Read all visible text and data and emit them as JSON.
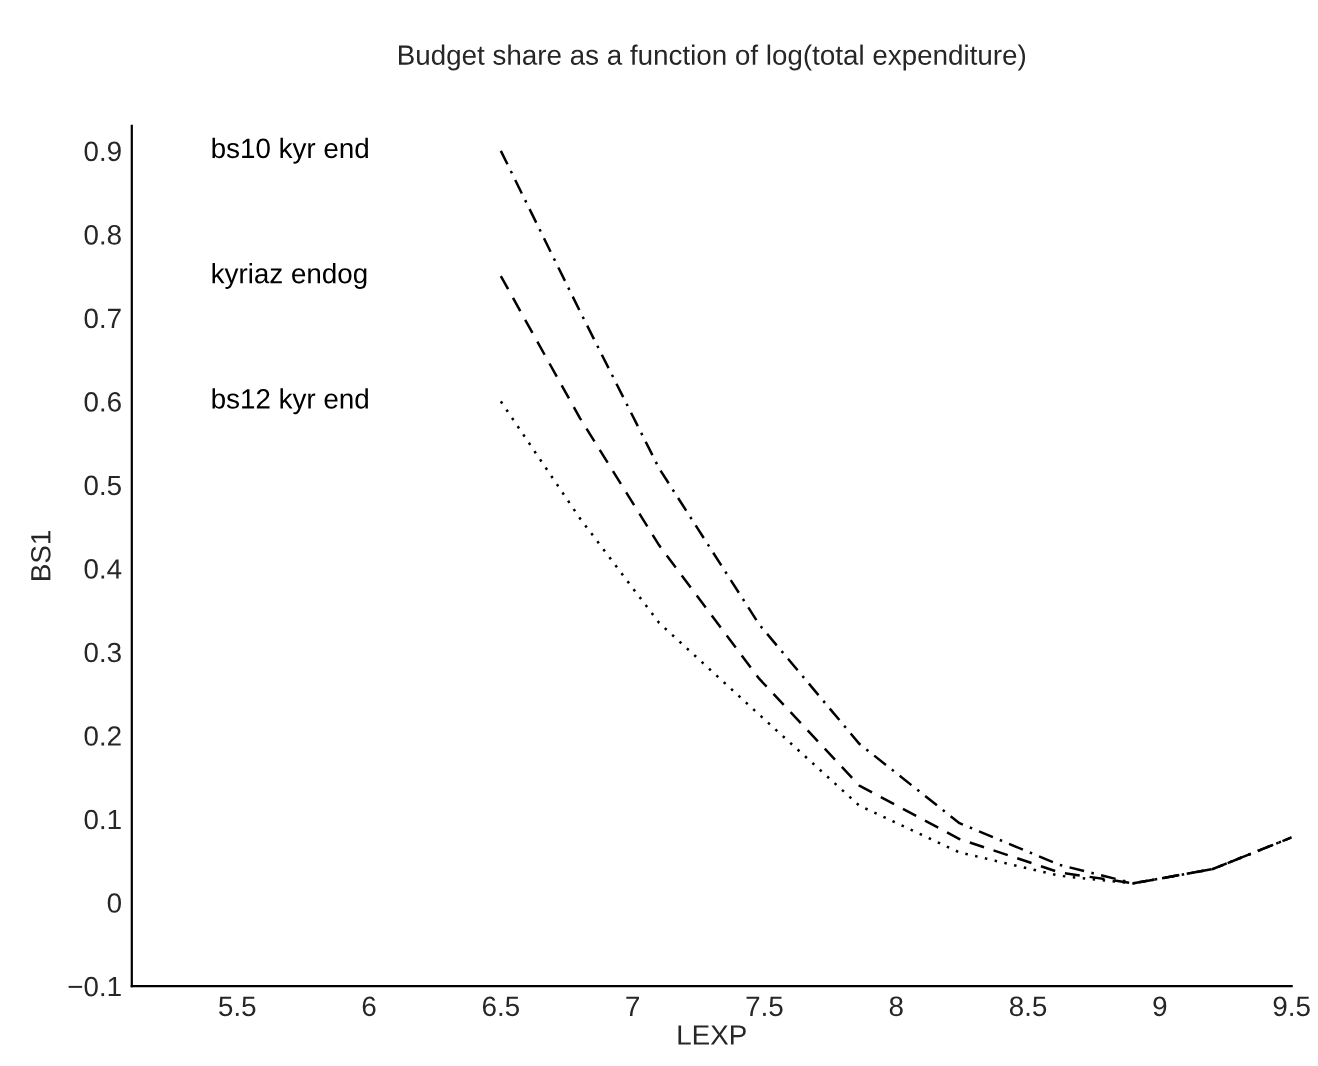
{
  "chart_data": {
    "type": "line",
    "title": "Budget share as a function of log(total expenditure)",
    "xlabel": "LEXP",
    "ylabel": "BS1",
    "x": [
      6.5,
      6.8,
      7.1,
      7.48,
      7.86,
      8.24,
      8.62,
      8.9,
      9.2,
      9.5
    ],
    "series": [
      {
        "color": "#000000",
        "line_style": "dashdot",
        "values": [
          0.9,
          0.708,
          0.52,
          0.333,
          0.19,
          0.095,
          0.045,
          0.023,
          0.04,
          0.078
        ]
      },
      {
        "color": "#000000",
        "line_style": "dashed",
        "values": [
          0.75,
          0.58,
          0.428,
          0.268,
          0.14,
          0.076,
          0.036,
          0.023,
          0.04,
          0.078
        ]
      },
      {
        "color": "#000000",
        "line_style": "dotted",
        "values": [
          0.6,
          0.46,
          0.335,
          0.225,
          0.116,
          0.06,
          0.032,
          0.023,
          0.04,
          0.078
        ]
      }
    ],
    "annotations": [
      "bs10 kyr end",
      "kyriaz endog",
      "bs12 kyr end"
    ],
    "xlim": [
      5.1,
      9.5
    ],
    "ylim": [
      -0.1,
      0.93
    ],
    "xticks": [
      5.5,
      6,
      6.5,
      7,
      7.5,
      8,
      8.5,
      9,
      9.5
    ],
    "yticks": [
      {
        "value": -0.1,
        "label": "−0.1"
      },
      0,
      0.1,
      0.2,
      0.3,
      0.4,
      0.5,
      0.6,
      0.7,
      0.8,
      0.9
    ],
    "grid": false,
    "legend": false
  }
}
